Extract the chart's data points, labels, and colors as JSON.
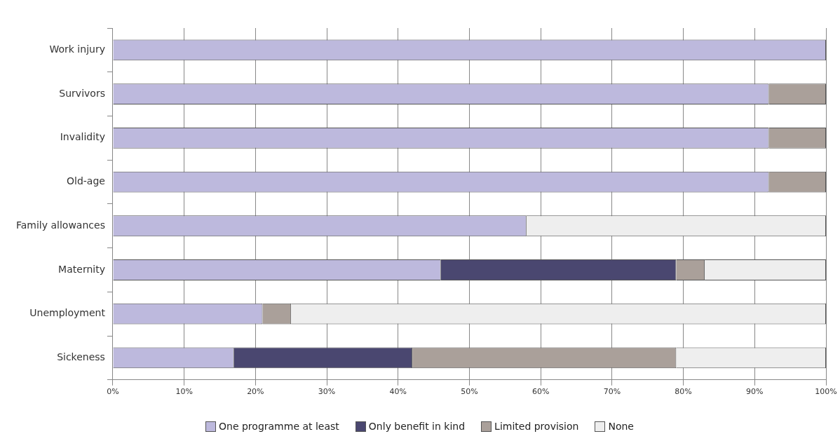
{
  "chart_data": {
    "type": "bar",
    "orientation": "horizontal",
    "stacked": true,
    "categories": [
      "Work injury",
      "Survivors",
      "Invalidity",
      "Old-age",
      "Family allowances",
      "Maternity",
      "Unemployment",
      "Sickeness"
    ],
    "series": [
      {
        "name": "One programme at least",
        "color": "#bdb9dd",
        "values": [
          100,
          92,
          92,
          92,
          58,
          46,
          21,
          17
        ]
      },
      {
        "name": "Only benefit in kind",
        "color": "#4a4770",
        "values": [
          0,
          0,
          0,
          0,
          0,
          33,
          0,
          25
        ]
      },
      {
        "name": "Limited provision",
        "color": "#aaa09a",
        "values": [
          0,
          8,
          8,
          8,
          0,
          4,
          4,
          37
        ]
      },
      {
        "name": "None",
        "color": "#eeeeee",
        "values": [
          0,
          0,
          0,
          0,
          42,
          17,
          75,
          21
        ]
      }
    ],
    "xlim": [
      0,
      100
    ],
    "xticks": [
      {
        "value": 0,
        "label": "0%"
      },
      {
        "value": 10,
        "label": "10%"
      },
      {
        "value": 20,
        "label": "20%"
      },
      {
        "value": 30,
        "label": "30%"
      },
      {
        "value": 40,
        "label": "40%"
      },
      {
        "value": 50,
        "label": "50%"
      },
      {
        "value": 60,
        "label": "60%"
      },
      {
        "value": 70,
        "label": "70%"
      },
      {
        "value": 80,
        "label": "80%"
      },
      {
        "value": 90,
        "label": "90%"
      },
      {
        "value": 100,
        "label": "100%"
      }
    ],
    "grid": "x",
    "legend": "bottom"
  }
}
